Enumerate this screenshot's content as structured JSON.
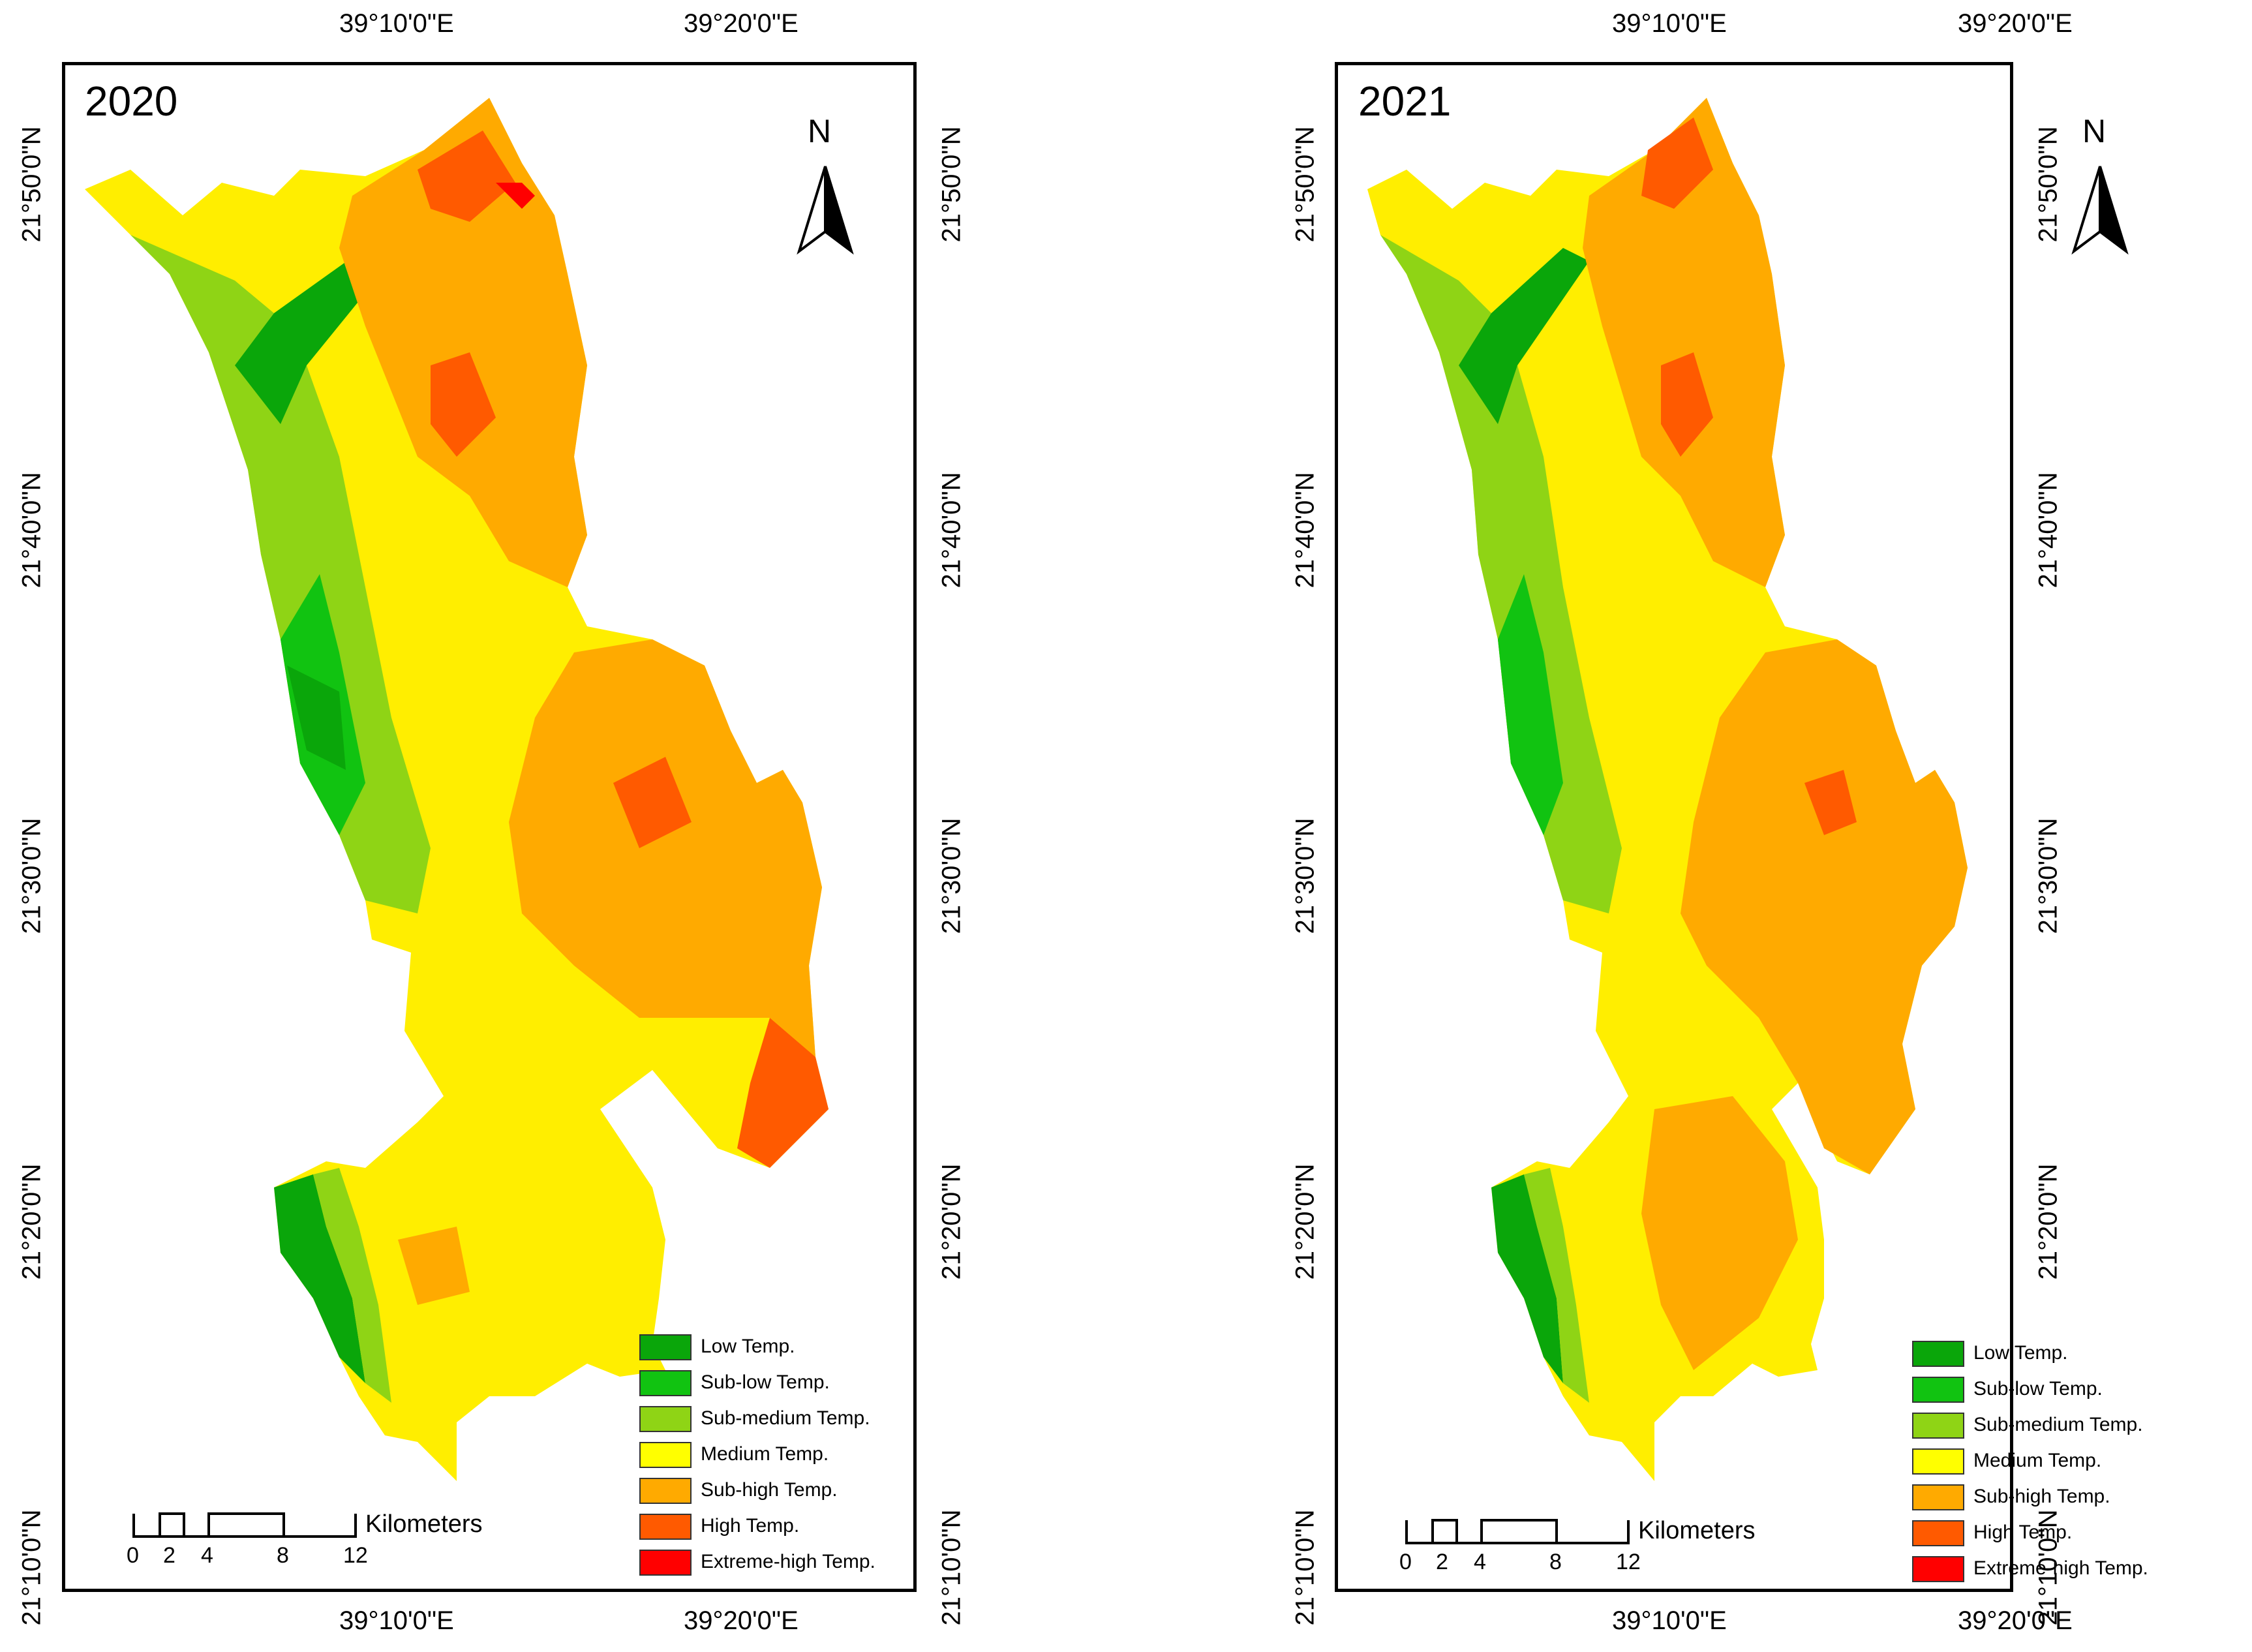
{
  "panels": [
    {
      "year": "2020",
      "lat_labels": [
        "21°50'0\"N",
        "21°40'0\"N",
        "21°30'0\"N",
        "21°20'0\"N",
        "21°10'0\"N"
      ],
      "lon_labels": [
        "39°10'0\"E",
        "39°20'0\"E"
      ],
      "north": "N",
      "scale": {
        "ticks": [
          "0",
          "2",
          "4",
          "8",
          "12"
        ],
        "unit": "Kilometers"
      }
    },
    {
      "year": "2021",
      "lat_labels": [
        "21°50'0\"N",
        "21°40'0\"N",
        "21°30'0\"N",
        "21°20'0\"N",
        "21°10'0\"N"
      ],
      "lon_labels": [
        "39°10'0\"E",
        "39°20'0\"E"
      ],
      "north": "N",
      "scale": {
        "ticks": [
          "0",
          "2",
          "4",
          "8",
          "12"
        ],
        "unit": "Kilometers"
      }
    }
  ],
  "legend": [
    {
      "label": "Low Temp.",
      "color": "#0aa60a"
    },
    {
      "label": "Sub-low Temp.",
      "color": "#11c311"
    },
    {
      "label": "Sub-medium Temp.",
      "color": "#8fd415"
    },
    {
      "label": "Medium Temp.",
      "color": "#ffff00"
    },
    {
      "label": "Sub-high Temp.",
      "color": "#ffaa00"
    },
    {
      "label": "High Temp.",
      "color": "#ff5a00"
    },
    {
      "label": "Extreme-high Temp.",
      "color": "#ff0000"
    }
  ]
}
